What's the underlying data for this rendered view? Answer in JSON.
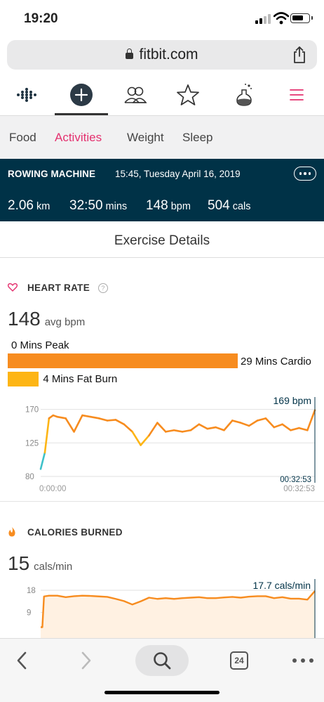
{
  "status": {
    "time": "19:20"
  },
  "browser": {
    "url": "fitbit.com",
    "tabs_count": "24"
  },
  "sub_tabs": [
    "Food",
    "Activities",
    "Weight",
    "Sleep"
  ],
  "banner": {
    "title": "ROWING MACHINE",
    "datetime": "15:45, Tuesday April 16, 2019",
    "stats": [
      {
        "value": "2.06",
        "unit": "km"
      },
      {
        "value": "32:50",
        "unit": "mins"
      },
      {
        "value": "148",
        "unit": "bpm"
      },
      {
        "value": "504",
        "unit": "cals"
      }
    ]
  },
  "details_title": "Exercise Details",
  "heart_rate": {
    "header": "HEART RATE",
    "help": "?",
    "avg_value": "148",
    "avg_unit": "avg bpm",
    "zones": [
      {
        "label": "0 Mins Peak",
        "minutes": 0,
        "color": "#e4316f"
      },
      {
        "label": "29 Mins Cardio",
        "minutes": 29,
        "color": "#f78c1f"
      },
      {
        "label": "4 Mins Fat Burn",
        "minutes": 4,
        "color": "#fdb515"
      }
    ]
  },
  "calories": {
    "header": "CALORIES BURNED",
    "rate_value": "15",
    "rate_unit": "cals/min"
  },
  "chart_data": [
    {
      "type": "line",
      "title": "",
      "ylim": [
        80,
        180
      ],
      "y_ticks": [
        "170",
        "125",
        "80"
      ],
      "y_tick_values": [
        170,
        125,
        80
      ],
      "x_labels": [
        "0:00:00",
        "00:32:53"
      ],
      "cursor_value": "169 bpm",
      "cursor_time": "00:32:53",
      "series": [
        {
          "x_minutes": [
            0,
            0.5,
            1,
            1.5,
            2,
            3,
            4,
            5,
            6,
            7,
            8,
            9,
            10,
            11,
            12,
            13,
            14,
            15,
            16,
            17,
            18,
            19,
            20,
            21,
            22,
            23,
            24,
            25,
            26,
            27,
            28,
            29,
            30,
            31,
            32,
            32.9
          ],
          "values": [
            90,
            112,
            158,
            162,
            160,
            158,
            140,
            162,
            160,
            158,
            155,
            156,
            150,
            140,
            122,
            135,
            152,
            140,
            142,
            140,
            142,
            150,
            144,
            146,
            142,
            155,
            152,
            148,
            155,
            158,
            146,
            150,
            142,
            145,
            142,
            169
          ]
        }
      ]
    },
    {
      "type": "area",
      "title": "",
      "ylim": [
        0,
        22
      ],
      "y_ticks": [
        "18",
        "9"
      ],
      "y_tick_values": [
        18,
        9
      ],
      "cursor_value": "17.7 cals/min",
      "series": [
        {
          "x_minutes": [
            0,
            0.2,
            0.4,
            1,
            2,
            3,
            4,
            5,
            6,
            7,
            8,
            9,
            10,
            11,
            12,
            13,
            14,
            15,
            16,
            17,
            18,
            19,
            20,
            21,
            22,
            23,
            24,
            25,
            26,
            27,
            28,
            29,
            30,
            31,
            32,
            32.9
          ],
          "values": [
            3,
            3,
            15.5,
            15.8,
            15.8,
            15.2,
            15.6,
            15.8,
            15.7,
            15.5,
            15.3,
            14.5,
            13.6,
            12.2,
            13.5,
            15.0,
            14.5,
            14.8,
            14.5,
            14.8,
            15.0,
            15.2,
            14.8,
            14.8,
            15.1,
            15.3,
            15.0,
            15.4,
            15.6,
            15.6,
            14.8,
            15.2,
            14.6,
            14.6,
            14.2,
            17.7
          ]
        }
      ]
    }
  ]
}
